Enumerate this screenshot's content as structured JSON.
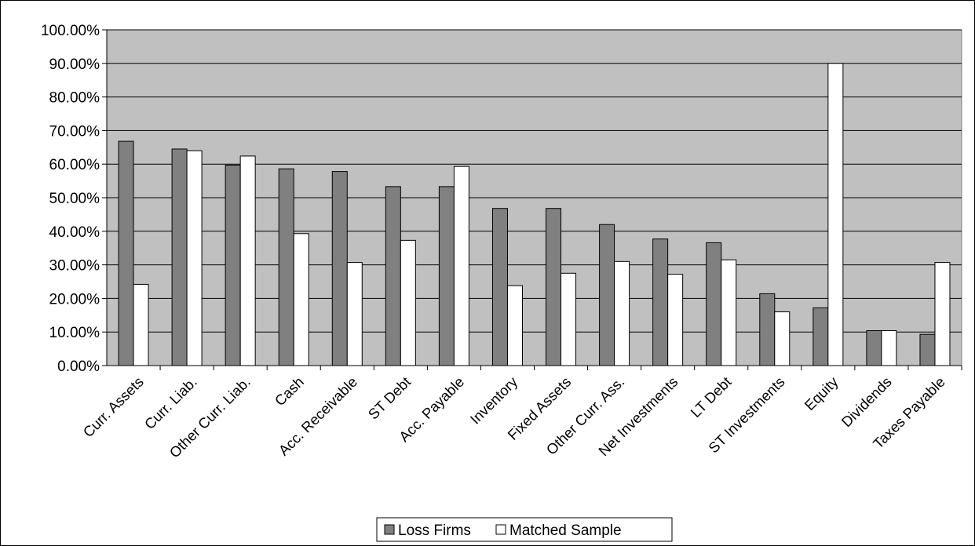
{
  "chart_data": {
    "type": "bar",
    "title": "",
    "xlabel": "",
    "ylabel": "",
    "ylim": [
      0,
      1
    ],
    "y_ticks": [
      "0.00%",
      "10.00%",
      "20.00%",
      "30.00%",
      "40.00%",
      "50.00%",
      "60.00%",
      "70.00%",
      "80.00%",
      "90.00%",
      "100.00%"
    ],
    "grid": true,
    "legend_position": "bottom-center",
    "plot_background": "#c0c0c0",
    "categories": [
      "Curr. Assets",
      "Curr. Liab.",
      "Other Curr. Liab.",
      "Cash",
      "Acc. Receivable",
      "ST Debt",
      "Acc. Payable",
      "Inventory",
      "Fixed Assets",
      "Other Curr. Ass.",
      "Net Investments",
      "LT Debt",
      "ST Investments",
      "Equity",
      "Dividends",
      "Taxes Payable"
    ],
    "series": [
      {
        "name": "Loss Firms",
        "color": "#808080",
        "values": [
          0.668,
          0.645,
          0.597,
          0.586,
          0.578,
          0.533,
          0.533,
          0.468,
          0.468,
          0.42,
          0.377,
          0.366,
          0.214,
          0.172,
          0.104,
          0.093
        ]
      },
      {
        "name": "Matched Sample",
        "color": "#ffffff",
        "values": [
          0.242,
          0.64,
          0.624,
          0.393,
          0.307,
          0.373,
          0.593,
          0.238,
          0.275,
          0.31,
          0.272,
          0.315,
          0.16,
          0.9,
          0.104,
          0.307
        ]
      }
    ]
  }
}
